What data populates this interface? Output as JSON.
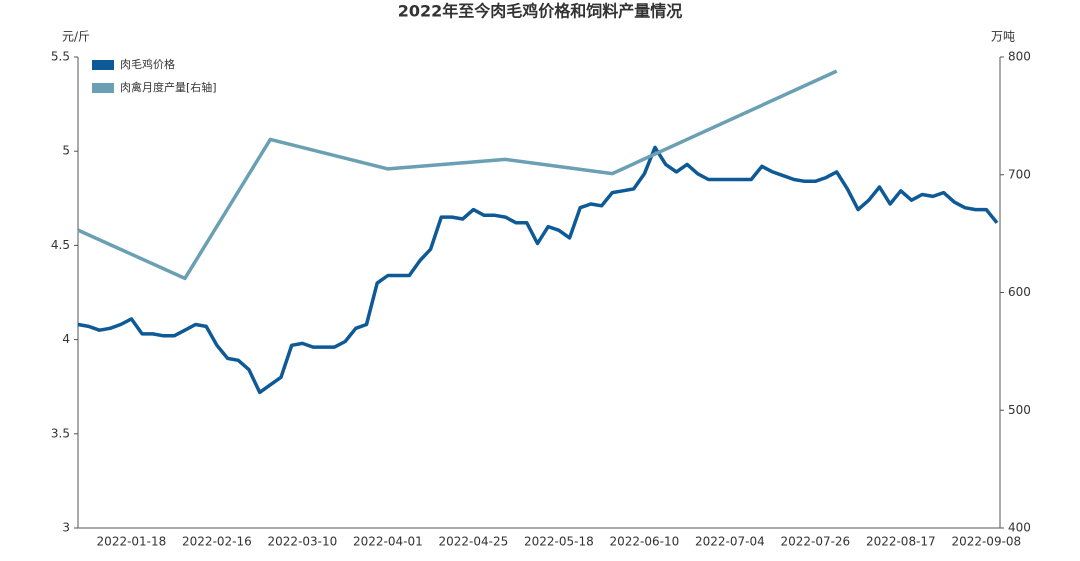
{
  "chart_data": {
    "type": "line",
    "title": "2022年至今肉毛鸡价格和饲料产量情况",
    "ylabel": "元/斤",
    "y2label": "万吨",
    "categories": [
      null,
      null,
      null,
      null,
      null,
      "2022-01-18",
      null,
      null,
      null,
      null,
      null,
      null,
      null,
      "2022-02-16",
      null,
      null,
      null,
      null,
      null,
      null,
      null,
      "2022-03-10",
      null,
      null,
      null,
      null,
      null,
      null,
      null,
      "2022-04-01",
      null,
      null,
      null,
      null,
      null,
      null,
      null,
      "2022-04-25",
      null,
      null,
      null,
      null,
      null,
      null,
      null,
      "2022-05-18",
      null,
      null,
      null,
      null,
      null,
      null,
      null,
      "2022-06-10",
      null,
      null,
      null,
      null,
      null,
      null,
      null,
      "2022-07-04",
      null,
      null,
      null,
      null,
      null,
      null,
      null,
      "2022-07-26",
      null,
      null,
      null,
      null,
      null,
      null,
      null,
      "2022-08-17",
      null,
      null,
      null,
      null,
      null,
      null,
      null,
      "2022-09-08",
      null
    ],
    "series": [
      {
        "name": "肉毛鸡价格",
        "color": "#0e5a97",
        "values": [
          4.08,
          4.07,
          4.05,
          4.06,
          4.08,
          4.11,
          4.03,
          4.03,
          4.02,
          4.02,
          4.05,
          4.08,
          4.07,
          3.97,
          3.9,
          3.89,
          3.84,
          3.72,
          3.76,
          3.8,
          3.97,
          3.98,
          3.96,
          3.96,
          3.96,
          3.99,
          4.06,
          4.08,
          4.3,
          4.34,
          4.34,
          4.34,
          4.42,
          4.48,
          4.65,
          4.65,
          4.64,
          4.69,
          4.66,
          4.66,
          4.65,
          4.62,
          4.62,
          4.51,
          4.6,
          4.58,
          4.54,
          4.7,
          4.72,
          4.71,
          4.78,
          4.79,
          4.8,
          4.88,
          5.02,
          4.93,
          4.89,
          4.93,
          4.88,
          4.85,
          4.85,
          4.85,
          4.85,
          4.85,
          4.92,
          4.89,
          4.87,
          4.85,
          4.84,
          4.84,
          4.86,
          4.89,
          4.8,
          4.69,
          4.74,
          4.81,
          4.72,
          4.79,
          4.74,
          4.77,
          4.76,
          4.78,
          4.73,
          4.7,
          4.69,
          4.69,
          4.62
        ]
      },
      {
        "name": "肉禽月度产量[右轴]",
        "color": "#6a9fb4",
        "axis": "y2",
        "connect_gaps": true,
        "values": [
          653,
          null,
          null,
          null,
          null,
          null,
          null,
          null,
          null,
          null,
          612,
          null,
          null,
          null,
          null,
          null,
          null,
          null,
          730,
          null,
          null,
          null,
          null,
          null,
          null,
          null,
          null,
          null,
          null,
          705,
          null,
          null,
          null,
          null,
          null,
          null,
          null,
          null,
          null,
          null,
          713,
          null,
          null,
          null,
          null,
          null,
          null,
          null,
          null,
          null,
          701,
          null,
          null,
          null,
          null,
          null,
          null,
          null,
          null,
          null,
          null,
          null,
          null,
          null,
          null,
          null,
          null,
          null,
          null,
          null,
          null,
          788,
          null,
          null,
          null,
          null,
          null,
          null,
          null,
          null,
          null,
          null,
          null,
          null,
          null,
          null,
          null
        ]
      }
    ],
    "ylim": [
      3,
      5.5
    ],
    "yticks": [
      3,
      3.5,
      4,
      4.5,
      5,
      5.5
    ],
    "y2lim": [
      400,
      800
    ],
    "y2ticks": [
      400,
      500,
      600,
      700,
      800
    ],
    "legend": "upper left",
    "grid": false
  }
}
